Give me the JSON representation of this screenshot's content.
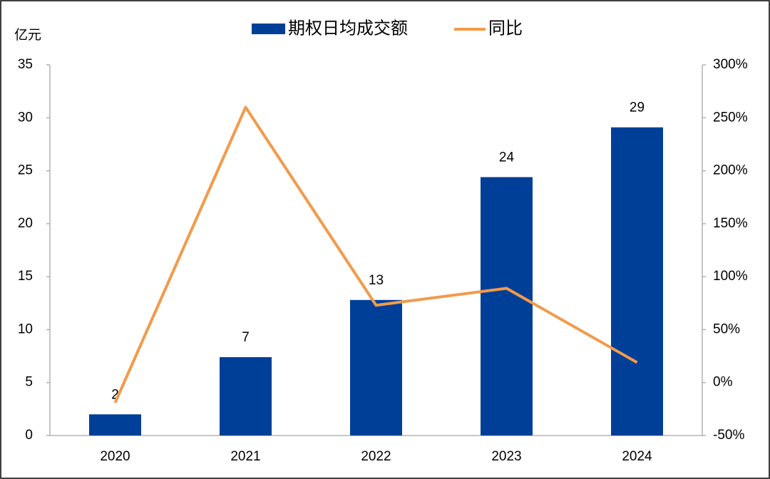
{
  "chart_data": {
    "type": "bar-line",
    "y_unit_label": "亿元",
    "categories": [
      "2020",
      "2021",
      "2022",
      "2023",
      "2024"
    ],
    "series": [
      {
        "name": "期权日均成交额",
        "type": "bar",
        "color": "#003f98",
        "values": [
          2.0,
          7.4,
          12.8,
          24.4,
          29.1
        ],
        "value_labels": [
          "2",
          "7",
          "13",
          "24",
          "29"
        ]
      },
      {
        "name": "同比",
        "type": "line",
        "axis": "y2",
        "color": "#f39a4a",
        "values": [
          -19,
          260,
          73,
          89,
          19
        ]
      }
    ],
    "ylim": [
      0,
      35
    ],
    "yticks": [
      0,
      5,
      10,
      15,
      20,
      25,
      30,
      35
    ],
    "y2lim": [
      -50,
      300
    ],
    "y2ticks": [
      {
        "value": -50,
        "label": "-50%"
      },
      {
        "value": 0,
        "label": "0%"
      },
      {
        "value": 50,
        "label": "50%"
      },
      {
        "value": 100,
        "label": "100%"
      },
      {
        "value": 150,
        "label": "150%"
      },
      {
        "value": 200,
        "label": "200%"
      },
      {
        "value": 250,
        "label": "250%"
      },
      {
        "value": 300,
        "label": "300%"
      }
    ],
    "legend": "top",
    "grid": false
  }
}
